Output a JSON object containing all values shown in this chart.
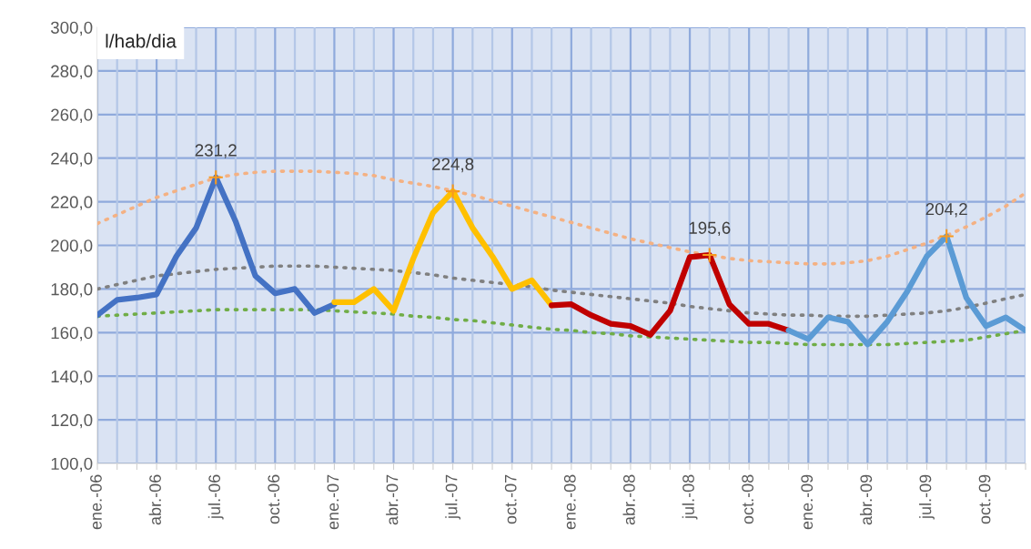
{
  "chart_data": {
    "type": "line",
    "ylabel": "l/hab/dia",
    "categories": [
      "ene.-06",
      null,
      null,
      "abr.-06",
      null,
      null,
      "jul.-06",
      null,
      null,
      "oct.-06",
      null,
      null,
      "ene.-07",
      null,
      null,
      "abr.-07",
      null,
      null,
      "jul.-07",
      null,
      null,
      "oct.-07",
      null,
      null,
      "ene.-08",
      null,
      null,
      "abr.-08",
      null,
      null,
      "jul.-08",
      null,
      null,
      "oct.-08",
      null,
      null,
      "ene.-09",
      null,
      null,
      "abr.-09",
      null,
      null,
      "jul.-09",
      null,
      null,
      "oct.-09",
      null,
      null
    ],
    "series": [
      {
        "color": "#f4b183",
        "line_style": "dotted",
        "values": [
          210,
          214,
          218,
          222,
          225,
          228,
          231,
          232.5,
          233.5,
          234,
          234,
          234,
          233.5,
          233,
          232,
          230,
          228.5,
          227,
          225,
          223,
          220.5,
          218,
          215.5,
          213,
          210.5,
          208,
          205.5,
          203,
          201,
          199,
          197,
          195.5,
          194,
          193,
          192.5,
          192,
          191.5,
          191.5,
          192,
          193,
          195,
          198,
          201,
          204.5,
          208.5,
          213,
          218,
          224
        ]
      },
      {
        "color": "#808080",
        "line_style": "dotted",
        "values": [
          180,
          182,
          184,
          186,
          187,
          188,
          189,
          189.5,
          190,
          190.5,
          190.5,
          190.5,
          190,
          189.5,
          189,
          188.5,
          187.5,
          186.5,
          185,
          184,
          183,
          182,
          181,
          179.5,
          178.5,
          177.5,
          176.5,
          175.5,
          174.5,
          173.5,
          172,
          171,
          170,
          169,
          168.5,
          168,
          168,
          167.5,
          167.5,
          167.5,
          168,
          168.5,
          169,
          170,
          171.5,
          173.5,
          175.5,
          177.5
        ]
      },
      {
        "color": "#70ad47",
        "line_style": "dotted",
        "values": [
          167.5,
          168,
          168.5,
          169,
          169.5,
          170,
          170.5,
          170.5,
          170.5,
          170.5,
          170.5,
          170.5,
          170,
          169.5,
          169,
          168.5,
          167.5,
          167,
          166,
          165.5,
          164.5,
          163.5,
          162.5,
          161.5,
          161,
          160,
          159.5,
          158.5,
          158,
          157.5,
          157,
          156.5,
          156,
          155.5,
          155.5,
          155,
          154.5,
          154.5,
          154.5,
          154.5,
          154.5,
          155,
          155.5,
          156,
          156.5,
          158,
          159.5,
          161
        ]
      },
      {
        "color": "#4472c4",
        "line_style": "solid",
        "values": [
          168,
          175,
          176,
          177.5,
          195,
          208,
          231.2,
          211,
          186,
          178,
          180,
          169,
          173,
          null,
          null,
          null,
          null,
          null,
          null,
          null,
          null,
          null,
          null,
          null,
          null,
          null,
          null,
          null,
          null,
          null,
          null,
          null,
          null,
          null,
          null,
          null,
          null,
          null,
          null,
          null,
          null,
          null,
          null,
          null,
          null,
          null,
          null,
          null
        ],
        "value_labels": [
          null,
          null,
          null,
          null,
          null,
          null,
          "231,2",
          null,
          null,
          null,
          null,
          null,
          null,
          null,
          null,
          null,
          null,
          null,
          null,
          null,
          null,
          null,
          null,
          null,
          null,
          null,
          null,
          null,
          null,
          null,
          null,
          null,
          null,
          null,
          null,
          null,
          null,
          null,
          null,
          null,
          null,
          null,
          null,
          null,
          null,
          null,
          null,
          null
        ]
      },
      {
        "color": "#ffc000",
        "line_style": "solid",
        "values": [
          null,
          null,
          null,
          null,
          null,
          null,
          null,
          null,
          null,
          null,
          null,
          null,
          174,
          174,
          180,
          170,
          194,
          215,
          224.8,
          208,
          195,
          180,
          184,
          172.5,
          null,
          null,
          null,
          null,
          null,
          null,
          null,
          null,
          null,
          null,
          null,
          null,
          null,
          null,
          null,
          null,
          null,
          null,
          null,
          null,
          null,
          null,
          null,
          null
        ],
        "value_labels": [
          null,
          null,
          null,
          null,
          null,
          null,
          null,
          null,
          null,
          null,
          null,
          null,
          null,
          null,
          null,
          null,
          null,
          null,
          "224,8",
          null,
          null,
          null,
          null,
          null,
          null,
          null,
          null,
          null,
          null,
          null,
          null,
          null,
          null,
          null,
          null,
          null,
          null,
          null,
          null,
          null,
          null,
          null,
          null,
          null,
          null,
          null,
          null,
          null
        ]
      },
      {
        "color": "#c00000",
        "line_style": "solid",
        "values": [
          null,
          null,
          null,
          null,
          null,
          null,
          null,
          null,
          null,
          null,
          null,
          null,
          null,
          null,
          null,
          null,
          null,
          null,
          null,
          null,
          null,
          null,
          null,
          172.5,
          173,
          168,
          164,
          163,
          159,
          170,
          194.6,
          195.6,
          173,
          164,
          164,
          161,
          null,
          null,
          null,
          null,
          null,
          null,
          null,
          null,
          null,
          null,
          null,
          null
        ],
        "value_labels": [
          null,
          null,
          null,
          null,
          null,
          null,
          null,
          null,
          null,
          null,
          null,
          null,
          null,
          null,
          null,
          null,
          null,
          null,
          null,
          null,
          null,
          null,
          null,
          null,
          null,
          null,
          null,
          null,
          null,
          null,
          null,
          "195,6",
          null,
          null,
          null,
          null,
          null,
          null,
          null,
          null,
          null,
          null,
          null,
          null,
          null,
          null,
          null,
          null
        ]
      },
      {
        "color": "#5b9bd5",
        "line_style": "solid",
        "values": [
          null,
          null,
          null,
          null,
          null,
          null,
          null,
          null,
          null,
          null,
          null,
          null,
          null,
          null,
          null,
          null,
          null,
          null,
          null,
          null,
          null,
          null,
          null,
          null,
          null,
          null,
          null,
          null,
          null,
          null,
          null,
          null,
          null,
          null,
          null,
          161,
          157,
          167,
          165,
          154.6,
          165,
          178.7,
          195,
          204.2,
          176,
          163,
          167,
          161
        ],
        "value_labels": [
          null,
          null,
          null,
          null,
          null,
          null,
          null,
          null,
          null,
          null,
          null,
          null,
          null,
          null,
          null,
          null,
          null,
          null,
          null,
          null,
          null,
          null,
          null,
          null,
          null,
          null,
          null,
          null,
          null,
          null,
          null,
          null,
          null,
          null,
          null,
          null,
          null,
          null,
          null,
          null,
          null,
          null,
          null,
          "204,2",
          null,
          null,
          null,
          null
        ]
      }
    ],
    "ylim": [
      100,
      300
    ],
    "yticks": [
      {
        "value": 100,
        "label": "100,0"
      },
      {
        "value": 120,
        "label": "120,0"
      },
      {
        "value": 140,
        "label": "140,0"
      },
      {
        "value": 160,
        "label": "160,0"
      },
      {
        "value": 180,
        "label": "180,0"
      },
      {
        "value": 200,
        "label": "200,0"
      },
      {
        "value": 220,
        "label": "220,0"
      },
      {
        "value": 240,
        "label": "240,0"
      },
      {
        "value": 260,
        "label": "260,0"
      },
      {
        "value": 280,
        "label": "280,0"
      },
      {
        "value": 300,
        "label": "300,0"
      }
    ],
    "grid": true,
    "legend": false
  }
}
